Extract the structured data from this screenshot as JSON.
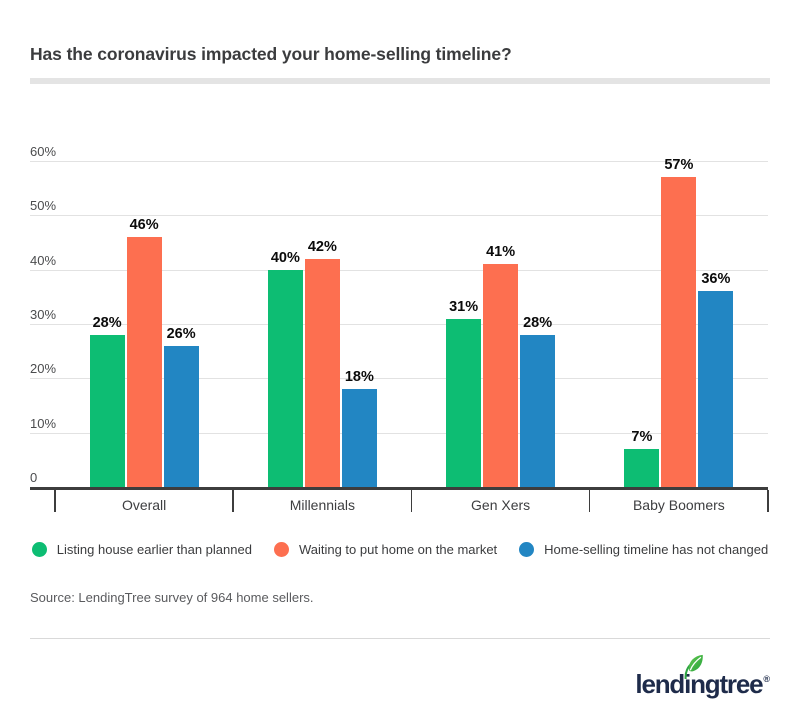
{
  "chart_data": {
    "type": "bar",
    "title": "Has the coronavirus impacted your home-selling timeline?",
    "categories": [
      "Overall",
      "Millennials",
      "Gen Xers",
      "Baby Boomers"
    ],
    "series": [
      {
        "name": "Listing house earlier than planned",
        "color": "#0dbd73",
        "values": [
          28,
          40,
          31,
          7
        ],
        "labels": [
          "28%",
          "40%",
          "31%",
          "7%"
        ]
      },
      {
        "name": "Waiting to put home on the market",
        "color": "#fd6f50",
        "values": [
          46,
          42,
          41,
          57
        ],
        "labels": [
          "46%",
          "42%",
          "41%",
          "57%"
        ]
      },
      {
        "name": "Home-selling timeline has not changed",
        "color": "#2286c3",
        "values": [
          26,
          18,
          28,
          36
        ],
        "labels": [
          "26%",
          "18%",
          "28%",
          "36%"
        ]
      }
    ],
    "xlabel": "",
    "ylabel": "",
    "ylim": [
      0,
      60
    ],
    "y_ticks": [
      {
        "value": 60,
        "label": "60%"
      },
      {
        "value": 50,
        "label": "50%"
      },
      {
        "value": 40,
        "label": "40%"
      },
      {
        "value": 30,
        "label": "30%"
      },
      {
        "value": 20,
        "label": "20%"
      },
      {
        "value": 10,
        "label": "10%"
      },
      {
        "value": 0,
        "label": "0"
      }
    ],
    "grid": true,
    "legend_position": "bottom"
  },
  "footer": {
    "source": "Source: LendingTree survey of 964 home sellers."
  },
  "branding": {
    "logo_text": "lendingtree",
    "registered_mark": "®",
    "logo_color": "#1e2b4a",
    "leaf_icon": "leaf-icon",
    "leaf_green_light": "#63c74f",
    "leaf_green_dark": "#27a33c"
  },
  "colors": {
    "accent_green": "#0dbd73",
    "accent_orange": "#fd6f50",
    "accent_blue": "#2286c3",
    "axis": "#3d3d3d",
    "gridline": "#e2e2e2",
    "title_text": "#3b3c3e",
    "source_text": "#5a5b5e"
  }
}
